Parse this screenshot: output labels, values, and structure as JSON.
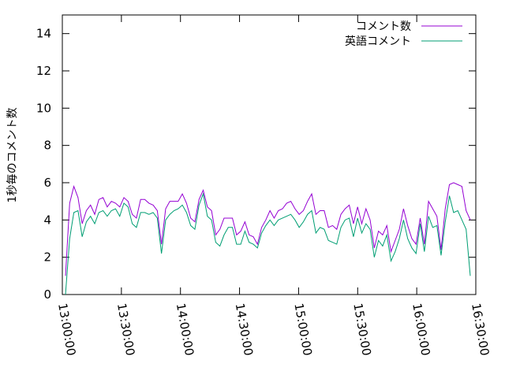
{
  "chart_data": {
    "type": "line",
    "title": "",
    "xlabel": "",
    "ylabel": "1秒毎のコメント数",
    "ylim": [
      0,
      15
    ],
    "yticks": [
      0,
      2,
      4,
      6,
      8,
      10,
      12,
      14
    ],
    "x_tick_labels": [
      "13:00:00",
      "13:30:00",
      "14:00:00",
      "14:30:00",
      "15:00:00",
      "15:30:00",
      "16:00:00",
      "16:30:00"
    ],
    "grid": false,
    "legend_position": "top-right",
    "series": [
      {
        "name": "コメント数",
        "color": "#9400d3",
        "values": [
          1,
          4.9,
          5.8,
          5.2,
          3.8,
          4.5,
          4.8,
          4.3,
          5.1,
          5.2,
          4.7,
          5.0,
          4.9,
          4.7,
          5.2,
          5.0,
          4.3,
          4.1,
          5.1,
          5.1,
          4.9,
          4.8,
          4.5,
          2.7,
          4.6,
          5.0,
          5.0,
          5.0,
          5.4,
          4.9,
          4.1,
          3.9,
          5.1,
          5.6,
          4.7,
          4.5,
          3.2,
          3.5,
          4.1,
          4.1,
          4.1,
          3.2,
          3.4,
          3.9,
          3.2,
          3.1,
          2.7,
          3.6,
          4.0,
          4.5,
          4.1,
          4.5,
          4.6,
          4.9,
          5.0,
          4.6,
          4.3,
          4.5,
          5.0,
          5.4,
          4.3,
          4.5,
          4.5,
          3.6,
          3.7,
          3.5,
          4.3,
          4.6,
          4.8,
          3.8,
          4.7,
          3.8,
          4.6,
          4.0,
          2.5,
          3.4,
          3.2,
          3.7,
          2.3,
          2.9,
          3.5,
          4.6,
          3.7,
          3.0,
          2.7,
          4.1,
          2.7,
          5.0,
          4.6,
          4.2,
          2.4,
          4.6,
          5.9,
          6.0,
          5.9,
          5.8,
          4.5,
          4.0
        ]
      },
      {
        "name": "英語コメント",
        "color": "#009e73",
        "values": [
          0,
          3.0,
          4.4,
          4.5,
          3.1,
          3.9,
          4.2,
          3.8,
          4.4,
          4.5,
          4.2,
          4.5,
          4.6,
          4.2,
          4.9,
          4.7,
          3.8,
          3.6,
          4.4,
          4.4,
          4.3,
          4.4,
          4.1,
          2.2,
          4.0,
          4.3,
          4.5,
          4.6,
          4.8,
          4.4,
          3.7,
          3.5,
          4.8,
          5.4,
          4.2,
          4.0,
          2.8,
          2.6,
          3.2,
          3.6,
          3.6,
          2.7,
          2.7,
          3.4,
          2.8,
          2.7,
          2.5,
          3.3,
          3.7,
          4.0,
          3.7,
          4.0,
          4.1,
          4.2,
          4.3,
          4.0,
          3.6,
          3.9,
          4.3,
          4.5,
          3.3,
          3.6,
          3.5,
          2.9,
          2.8,
          2.7,
          3.6,
          4.0,
          4.1,
          3.1,
          4.1,
          3.3,
          3.8,
          3.5,
          2.0,
          2.9,
          2.6,
          3.2,
          1.8,
          2.3,
          3.0,
          4.0,
          3.0,
          2.5,
          2.2,
          3.8,
          2.3,
          4.2,
          3.6,
          3.7,
          2.1,
          3.9,
          5.3,
          4.4,
          4.5,
          4.0,
          3.5,
          1.0
        ]
      }
    ]
  }
}
